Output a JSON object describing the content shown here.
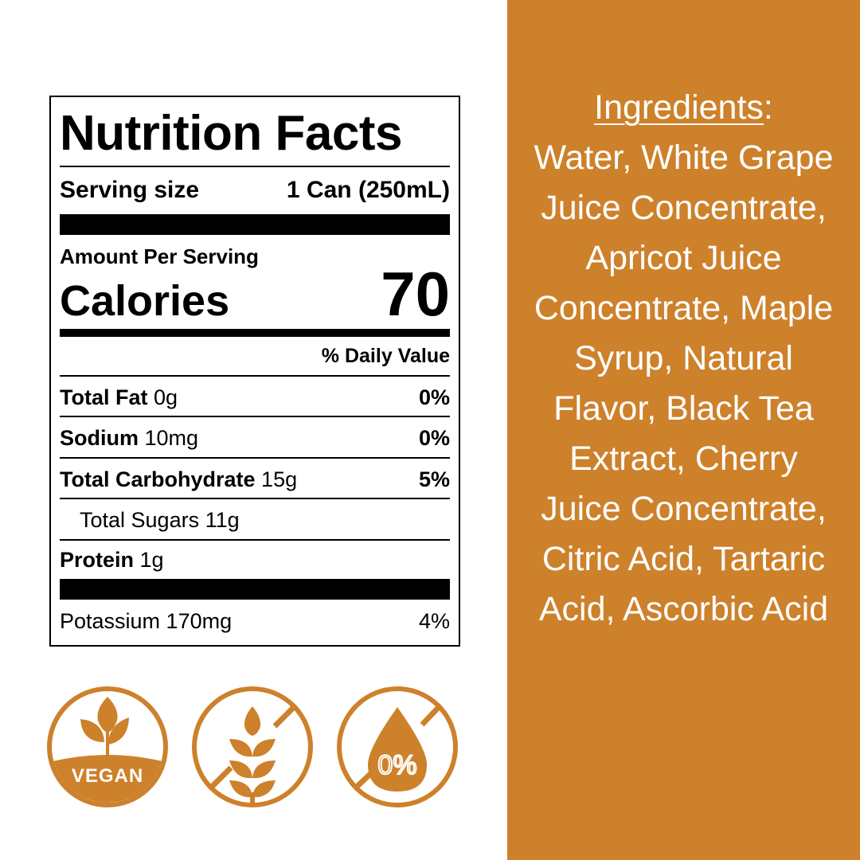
{
  "nutrition": {
    "title": "Nutrition Facts",
    "serving_label": "Serving size",
    "serving_value": "1 Can (250mL)",
    "amount_per_serving": "Amount Per Serving",
    "calories_label": "Calories",
    "calories_value": "70",
    "daily_value_header": "% Daily Value",
    "rows": [
      {
        "name": "Total Fat",
        "amount": "0g",
        "dv": "0%"
      },
      {
        "name": "Sodium",
        "amount": "10mg",
        "dv": "0%"
      },
      {
        "name": "Total Carbohydrate",
        "amount": "15g",
        "dv": "5%"
      },
      {
        "name": "Total Sugars 11g",
        "amount": "",
        "dv": ""
      },
      {
        "name": "Protein",
        "amount": "1g",
        "dv": ""
      }
    ],
    "potassium": {
      "label": "Potassium 170mg",
      "dv": "4%"
    }
  },
  "ingredients": {
    "heading": "Ingredients",
    "colon": ":",
    "lines": [
      "Water, White Grape",
      "Juice Concentrate,",
      "Apricot Juice",
      "Concentrate, Maple",
      "Syrup, Natural",
      "Flavor, Black Tea",
      "Extract, Cherry",
      "Juice Concentrate,",
      "Citric Acid, Tartaric",
      "Acid, Ascorbic Acid"
    ]
  },
  "badges": {
    "vegan_text": "VEGAN",
    "zero_text": "0%",
    "icons": [
      "vegan-plant-icon",
      "gluten-free-wheat-icon",
      "zero-percent-drop-icon"
    ]
  },
  "colors": {
    "accent": "#cd812b",
    "label_ink": "#000000"
  }
}
